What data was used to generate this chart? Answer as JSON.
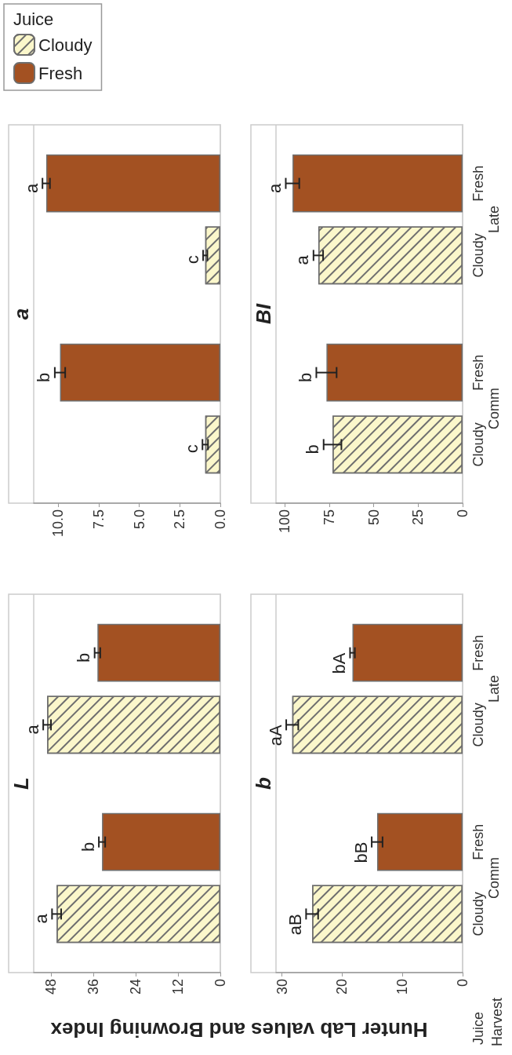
{
  "chart_data": [
    {
      "type": "bar",
      "orientation": "horizontal",
      "title": "a",
      "legend": "top",
      "legend_title": "Juice",
      "categories": [
        null,
        null
      ],
      "series": [
        {
          "name": "Cloudy",
          "color": "#fbf7cb",
          "values": [
            0.93,
            0.93
          ],
          "errors": [
            0.13,
            0.17
          ],
          "value_labels": [
            "c",
            "c"
          ]
        },
        {
          "name": "Fresh",
          "color": "#a35122",
          "values": [
            10.73,
            9.88
          ],
          "errors": [
            0.23,
            0.32
          ],
          "value_labels": [
            "a",
            "b"
          ]
        }
      ],
      "xlim": [
        11.5,
        0
      ],
      "xticks": [
        {
          "value": 0,
          "label": "0.0"
        },
        {
          "value": 2.5,
          "label": "2.5"
        },
        {
          "value": 5,
          "label": "5.0"
        },
        {
          "value": 7.5,
          "label": "7.5"
        },
        {
          "value": 10,
          "label": "10.0"
        }
      ],
      "tick_labels": "x"
    },
    {
      "type": "bar",
      "orientation": "horizontal",
      "title": "BI",
      "categories": [
        "Late",
        "Comm"
      ],
      "series": [
        {
          "name": "Cloudy",
          "color": "#fbf7cb",
          "values": [
            81.2,
            73.2
          ],
          "errors": [
            2.7,
            5.0
          ],
          "value_labels": [
            "a",
            "b"
          ]
        },
        {
          "name": "Fresh",
          "color": "#a35122",
          "values": [
            95.7,
            76.6
          ],
          "errors": [
            3.8,
            5.7
          ],
          "value_labels": [
            "a",
            "b"
          ]
        }
      ],
      "xlim": [
        105,
        0
      ],
      "xticks": [
        0,
        25,
        50,
        75,
        100
      ]
    },
    {
      "type": "bar",
      "orientation": "horizontal",
      "title": "L",
      "xlabel": "Hunter Lab values and Browning Index",
      "categories": [
        null,
        null
      ],
      "series": [
        {
          "color": "#fbf7cb",
          "values": [
            49.2,
            46.5
          ],
          "errors": [
            1.1,
            1.3
          ],
          "value_labels": [
            "a",
            "a"
          ]
        },
        {
          "color": "#a35122",
          "values": [
            34.9,
            33.6
          ],
          "errors": [
            0.8,
            0.9
          ],
          "value_labels": [
            "b",
            "b"
          ]
        }
      ],
      "xlim": [
        53,
        0
      ],
      "xticks": [
        0,
        12,
        24,
        36,
        48
      ],
      "tick_labels": "x"
    },
    {
      "type": "bar",
      "orientation": "horizontal",
      "title": "b",
      "ylabel": "Harvest",
      "annotations": [
        "Juice"
      ],
      "categories": [
        "Late",
        "Comm"
      ],
      "series": [
        {
          "name": "Cloudy",
          "color": "#fbf7cb",
          "values": [
            28.3,
            25.0
          ],
          "errors": [
            1.0,
            1.0
          ],
          "value_labels": [
            "aA",
            "aB"
          ]
        },
        {
          "name": "Fresh",
          "color": "#a35122",
          "values": [
            18.3,
            14.2
          ],
          "errors": [
            0.4,
            0.9
          ],
          "value_labels": [
            "bA",
            "bB"
          ]
        }
      ],
      "xlim": [
        31,
        0
      ],
      "xticks": [
        0,
        10,
        20,
        30
      ]
    }
  ]
}
